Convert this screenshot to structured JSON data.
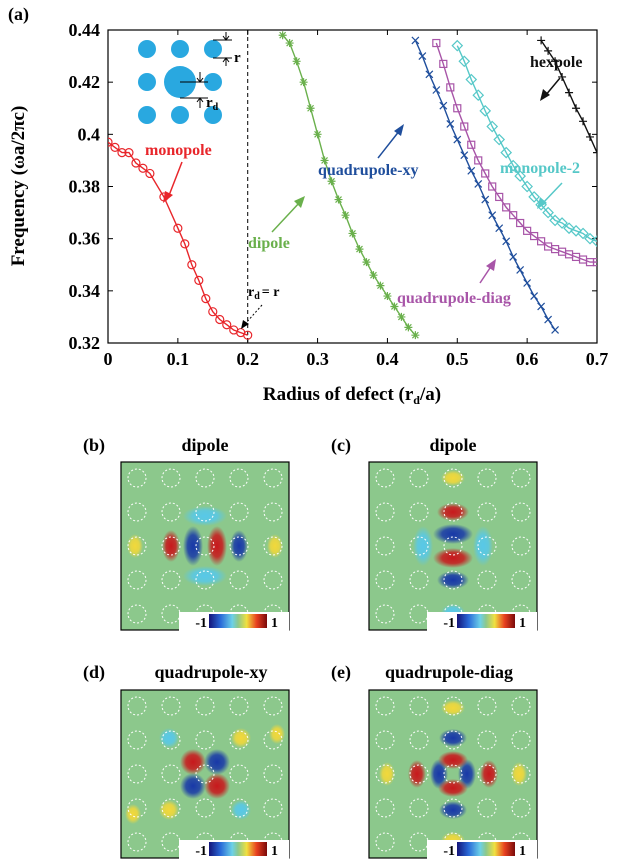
{
  "figure": {
    "panel_a": {
      "label": "(a)",
      "xlabel": "Radius of defect (r",
      "xlabel_sub": "d",
      "xlabel_end": "/a)",
      "ylabel": "Frequency  (ωa/2πc)",
      "inset": {
        "r_label": "r",
        "rd_label": "r",
        "rd_sub": "d"
      },
      "annotations": {
        "monopole": "monopole",
        "dipole": "dipole",
        "quadrupole_xy": "quadrupole-xy",
        "quadrupole_diag": "quadrupole-diag",
        "monopole_2": "monopole-2",
        "hexpole": "hexpole",
        "rd_eq_r": "= r",
        "rd_eq_r_prefix": "r",
        "rd_eq_r_sub": "d"
      }
    },
    "field_panels": [
      {
        "label": "(b)",
        "title": "dipole",
        "mode": "dipole-x"
      },
      {
        "label": "(c)",
        "title": "dipole",
        "mode": "dipole-y"
      },
      {
        "label": "(d)",
        "title": "quadrupole-xy",
        "mode": "quad-xy"
      },
      {
        "label": "(e)",
        "title": "quadrupole-diag",
        "mode": "quad-diag"
      }
    ],
    "colorbar": {
      "min_label": "-1",
      "max_label": "1"
    },
    "colors": {
      "monopole": "#e8262b",
      "dipole": "#6ab04c",
      "quadrupole_xy": "#1f4e9c",
      "quadrupole_diag": "#a855a8",
      "monopole_2": "#56c8c8",
      "hexpole": "#111111",
      "inset_rod": "#29a8e0",
      "field_bg": "#8cc88c"
    }
  },
  "chart_data": {
    "type": "line",
    "title": "",
    "xlabel": "Radius of defect (rd/a)",
    "ylabel": "Frequency  (ωa/2πc)",
    "xlim": [
      0,
      0.7
    ],
    "ylim": [
      0.32,
      0.44
    ],
    "xticks": [
      "0",
      "0.1",
      "0.2",
      "0.3",
      "0.4",
      "0.5",
      "0.6",
      "0.7"
    ],
    "yticks": [
      "0.32",
      "0.34",
      "0.36",
      "0.38",
      "0.4",
      "0.42",
      "0.44"
    ],
    "grid": false,
    "vline_x": 0.2,
    "series": [
      {
        "name": "monopole",
        "marker": "circle",
        "color": "#e8262b",
        "x": [
          0,
          0.01,
          0.02,
          0.03,
          0.04,
          0.05,
          0.06,
          0.08,
          0.1,
          0.11,
          0.12,
          0.13,
          0.14,
          0.15,
          0.16,
          0.17,
          0.18,
          0.19,
          0.2
        ],
        "y": [
          0.397,
          0.395,
          0.393,
          0.393,
          0.389,
          0.387,
          0.385,
          0.376,
          0.364,
          0.358,
          0.35,
          0.344,
          0.337,
          0.332,
          0.329,
          0.327,
          0.325,
          0.324,
          0.323
        ]
      },
      {
        "name": "dipole",
        "marker": "asterisk",
        "color": "#6ab04c",
        "x": [
          0.25,
          0.26,
          0.27,
          0.28,
          0.29,
          0.3,
          0.31,
          0.32,
          0.33,
          0.34,
          0.35,
          0.36,
          0.37,
          0.38,
          0.39,
          0.4,
          0.41,
          0.42,
          0.43,
          0.44
        ],
        "y": [
          0.438,
          0.435,
          0.428,
          0.42,
          0.41,
          0.4,
          0.39,
          0.382,
          0.375,
          0.369,
          0.362,
          0.356,
          0.351,
          0.346,
          0.342,
          0.338,
          0.334,
          0.33,
          0.326,
          0.323
        ]
      },
      {
        "name": "quadrupole-xy",
        "marker": "x",
        "color": "#1f4e9c",
        "x": [
          0.44,
          0.45,
          0.46,
          0.47,
          0.48,
          0.49,
          0.5,
          0.51,
          0.52,
          0.53,
          0.54,
          0.55,
          0.56,
          0.57,
          0.58,
          0.59,
          0.6,
          0.61,
          0.62,
          0.63,
          0.64
        ],
        "y": [
          0.436,
          0.43,
          0.423,
          0.417,
          0.411,
          0.404,
          0.398,
          0.392,
          0.386,
          0.381,
          0.375,
          0.369,
          0.364,
          0.359,
          0.353,
          0.348,
          0.343,
          0.338,
          0.334,
          0.329,
          0.325
        ]
      },
      {
        "name": "quadrupole-diag",
        "marker": "square",
        "color": "#a855a8",
        "x": [
          0.47,
          0.48,
          0.49,
          0.5,
          0.51,
          0.52,
          0.53,
          0.54,
          0.55,
          0.56,
          0.57,
          0.58,
          0.59,
          0.6,
          0.61,
          0.62,
          0.63,
          0.64,
          0.65,
          0.66,
          0.67,
          0.68,
          0.69,
          0.7
        ],
        "y": [
          0.435,
          0.427,
          0.418,
          0.41,
          0.403,
          0.396,
          0.39,
          0.385,
          0.38,
          0.376,
          0.372,
          0.369,
          0.366,
          0.363,
          0.361,
          0.359,
          0.357,
          0.356,
          0.355,
          0.354,
          0.353,
          0.352,
          0.351,
          0.351
        ]
      },
      {
        "name": "monopole-2",
        "marker": "diamond",
        "color": "#56c8c8",
        "x": [
          0.5,
          0.51,
          0.52,
          0.53,
          0.54,
          0.55,
          0.56,
          0.57,
          0.58,
          0.59,
          0.6,
          0.61,
          0.62,
          0.63,
          0.64,
          0.65,
          0.66,
          0.67,
          0.68,
          0.69,
          0.7
        ],
        "y": [
          0.434,
          0.428,
          0.421,
          0.415,
          0.409,
          0.403,
          0.398,
          0.393,
          0.388,
          0.384,
          0.38,
          0.376,
          0.373,
          0.37,
          0.367,
          0.366,
          0.364,
          0.363,
          0.362,
          0.36,
          0.359
        ]
      },
      {
        "name": "hexpole",
        "marker": "plus",
        "color": "#111111",
        "x": [
          0.62,
          0.63,
          0.64,
          0.65,
          0.66,
          0.67,
          0.68,
          0.69,
          0.7
        ],
        "y": [
          0.436,
          0.432,
          0.428,
          0.422,
          0.416,
          0.41,
          0.405,
          0.399,
          0.393
        ]
      }
    ]
  }
}
